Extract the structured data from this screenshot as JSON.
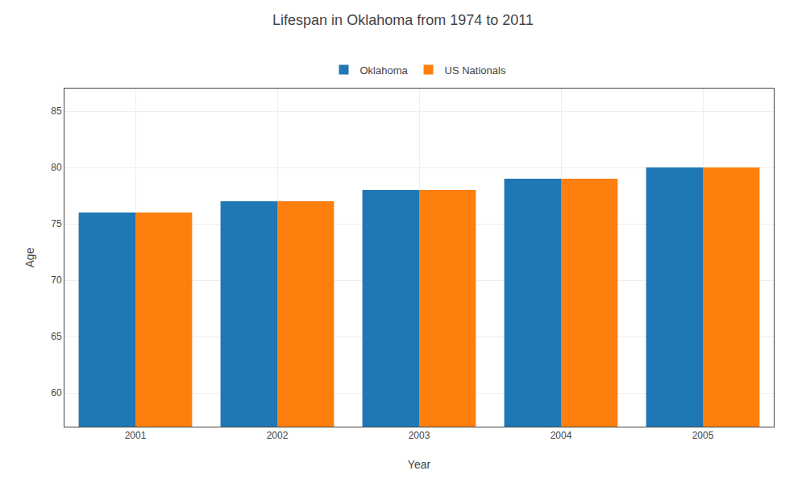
{
  "chart_data": {
    "type": "bar",
    "title": "Lifespan in Oklahoma from 1974 to 2011",
    "x_label": "Year",
    "y_label": "Age",
    "categories": [
      "2001",
      "2002",
      "2003",
      "2004",
      "2005"
    ],
    "series": [
      {
        "name": "Oklahoma",
        "values": [
          76,
          77,
          78,
          79,
          80
        ]
      },
      {
        "name": "US Nationals",
        "values": [
          76,
          77,
          78,
          79,
          80
        ]
      }
    ],
    "ylim": [
      57,
      87
    ],
    "yticks": [
      60,
      65,
      70,
      75,
      80,
      85
    ],
    "grid": true,
    "legend": "top"
  }
}
